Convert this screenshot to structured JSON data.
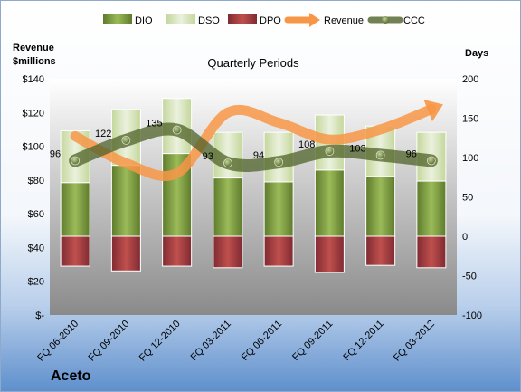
{
  "chart_data": {
    "type": "bar",
    "subtitle": "Quarterly Periods",
    "company": "Aceto",
    "left_axis_title": [
      "Revenue",
      "$millions"
    ],
    "right_axis_title": "Days",
    "categories": [
      "FQ 06-2010",
      "FQ 09-2010",
      "FQ 12-2010",
      "FQ 03-2011",
      "FQ 06-2011",
      "FQ 09-2011",
      "FQ 12-2011",
      "FQ 03-2012"
    ],
    "left_ticks": [
      "$-",
      "$20",
      "$40",
      "$60",
      "$80",
      "$100",
      "$120",
      "$140"
    ],
    "left_ylim": [
      0,
      140
    ],
    "right_ticks": [
      "-100",
      "-50",
      "0",
      "50",
      "100",
      "150",
      "200"
    ],
    "right_ylim": [
      -100,
      200
    ],
    "series": [
      {
        "name": "DIO",
        "axis": "days",
        "color": "#77933C",
        "values": [
          68,
          90,
          105,
          74,
          69,
          84,
          76,
          70
        ]
      },
      {
        "name": "DSO",
        "axis": "days",
        "color": "#D7E4BD",
        "values": [
          66,
          71,
          70,
          58,
          63,
          70,
          64,
          62
        ]
      },
      {
        "name": "DPO",
        "axis": "days",
        "color": "#A6404A",
        "values": [
          -38,
          -44,
          -38,
          -40,
          -38,
          -46,
          -37,
          -40
        ]
      },
      {
        "name": "Revenue",
        "axis": "revenue",
        "color": "#F79646",
        "values": [
          106,
          90,
          84,
          120,
          114,
          104,
          110,
          122
        ]
      },
      {
        "name": "CCC",
        "axis": "days",
        "color": "#4F6228",
        "values": [
          96,
          122,
          135,
          93,
          94,
          108,
          103,
          96
        ]
      }
    ],
    "data_labels": [
      "96",
      "122",
      "135",
      "93",
      "94",
      "108",
      "103",
      "96"
    ],
    "legend_position": "top",
    "grid": false
  },
  "colors": {
    "background_top": "#FFFFFF",
    "background_bottom": "#5E8FCC",
    "plot_top": "#FFFFFF",
    "plot_bottom": "#8C8C8C"
  }
}
